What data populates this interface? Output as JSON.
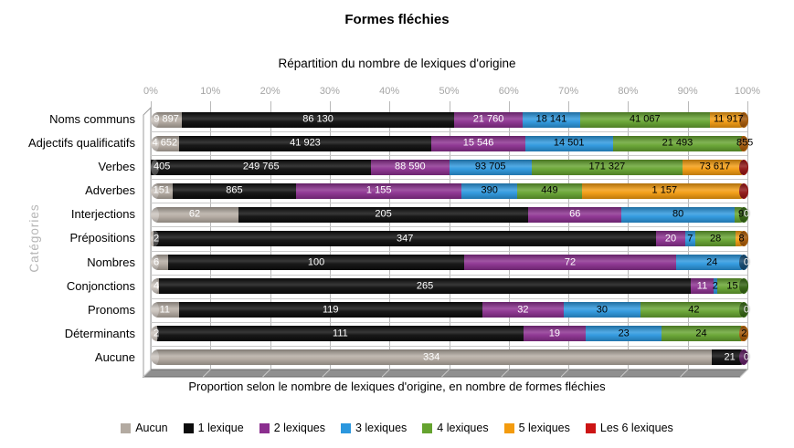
{
  "chart_data": {
    "type": "bar",
    "orientation": "horizontal",
    "stacked": "100%",
    "title": "Formes fléchies",
    "subtitle": "Répartition du nombre de lexiques d'origine",
    "caption": "Proportion selon le nombre de lexiques d'origine, en nombre de formes fléchies",
    "y_axis_title": "Catégories",
    "x_ticks": [
      "0%",
      "10%",
      "20%",
      "30%",
      "40%",
      "50%",
      "60%",
      "70%",
      "80%",
      "90%",
      "100%"
    ],
    "grid": "vertical-10pct",
    "legend_position": "bottom",
    "legend": [
      {
        "key": "aucun",
        "label": "Aucun"
      },
      {
        "key": "lex1",
        "label": "1 lexique"
      },
      {
        "key": "lex2",
        "label": "2 lexiques"
      },
      {
        "key": "lex3",
        "label": "3 lexiques"
      },
      {
        "key": "lex4",
        "label": "4 lexiques"
      },
      {
        "key": "lex5",
        "label": "5 lexiques"
      },
      {
        "key": "lex6",
        "label": "Les 6 lexiques"
      }
    ],
    "colors": {
      "aucun": "#b3aaa1",
      "lex1": "#0c0c0c",
      "lex2": "#8b2f8f",
      "lex3": "#2b97de",
      "lex4": "#65a32f",
      "lex5": "#f39b0e",
      "lex6": "#cc1414"
    },
    "cap_colors": {
      "aucun": "#857c74",
      "lex1": "#3a3a3a",
      "lex2": "#5a1b5e",
      "lex3": "#10466f",
      "lex4": "#30600f",
      "lex5": "#a05505",
      "lex6": "#8e1212"
    },
    "label_text_colors": {
      "aucun": "#ffffff",
      "lex1": "#ffffff",
      "lex2": "#ffffff",
      "lex3": "#000000",
      "lex4": "#000000",
      "lex5": "#000000",
      "lex6": "#ffffff"
    },
    "categories": [
      "Noms communs",
      "Adjectifs qualificatifs",
      "Verbes",
      "Adverbes",
      "Interjections",
      "Prépositions",
      "Nombres",
      "Conjonctions",
      "Pronoms",
      "Déterminants",
      "Aucune"
    ],
    "rows": [
      {
        "category": "Noms communs",
        "cap": "lex5",
        "end_label": "",
        "segments": [
          {
            "series": "aucun",
            "value": 9897,
            "label": "9 897"
          },
          {
            "series": "lex1",
            "value": 86130,
            "label": "86 130"
          },
          {
            "series": "lex2",
            "value": 21760,
            "label": "21 760"
          },
          {
            "series": "lex3",
            "value": 18141,
            "label": "18 141"
          },
          {
            "series": "lex4",
            "value": 41067,
            "label": "41 067"
          },
          {
            "series": "lex5",
            "value": 11917,
            "label": "11 917"
          }
        ]
      },
      {
        "category": "Adjectifs qualificatifs",
        "cap": "lex5",
        "end_label": "",
        "segments": [
          {
            "series": "aucun",
            "value": 4652,
            "label": "4 652"
          },
          {
            "series": "lex1",
            "value": 41923,
            "label": "41 923"
          },
          {
            "series": "lex2",
            "value": 15546,
            "label": "15 546"
          },
          {
            "series": "lex3",
            "value": 14501,
            "label": "14 501"
          },
          {
            "series": "lex4",
            "value": 21493,
            "label": "21 493"
          },
          {
            "series": "lex5",
            "value": 855,
            "label": "855"
          }
        ]
      },
      {
        "category": "Verbes",
        "cap": "lex6",
        "end_label": "",
        "segments": [
          {
            "series": "aucun",
            "value": 405,
            "label": "405"
          },
          {
            "series": "lex1",
            "value": 249765,
            "label": "249 765"
          },
          {
            "series": "lex2",
            "value": 88590,
            "label": "88 590"
          },
          {
            "series": "lex3",
            "value": 93705,
            "label": "93 705"
          },
          {
            "series": "lex4",
            "value": 171327,
            "label": "171 327"
          },
          {
            "series": "lex5",
            "value": 73617,
            "label": "73 617"
          }
        ]
      },
      {
        "category": "Adverbes",
        "cap": "lex6",
        "end_label": "",
        "segments": [
          {
            "series": "aucun",
            "value": 151,
            "label": "151"
          },
          {
            "series": "lex1",
            "value": 865,
            "label": "865"
          },
          {
            "series": "lex2",
            "value": 1155,
            "label": "1 155"
          },
          {
            "series": "lex3",
            "value": 390,
            "label": "390"
          },
          {
            "series": "lex4",
            "value": 449,
            "label": "449"
          },
          {
            "series": "lex5",
            "value": 1157,
            "label": "1 157"
          }
        ]
      },
      {
        "category": "Interjections",
        "cap": "lex4",
        "end_label": "0",
        "segments": [
          {
            "series": "aucun",
            "value": 62,
            "label": "62"
          },
          {
            "series": "lex1",
            "value": 205,
            "label": "205"
          },
          {
            "series": "lex2",
            "value": 66,
            "label": "66"
          },
          {
            "series": "lex3",
            "value": 80,
            "label": "80"
          },
          {
            "series": "lex4",
            "value": 9,
            "label": "9"
          }
        ]
      },
      {
        "category": "Prépositions",
        "cap": "lex5",
        "end_label": "",
        "segments": [
          {
            "series": "aucun",
            "value": 2,
            "label": "2"
          },
          {
            "series": "lex1",
            "value": 347,
            "label": "347"
          },
          {
            "series": "lex2",
            "value": 20,
            "label": "20"
          },
          {
            "series": "lex3",
            "value": 7,
            "label": "7"
          },
          {
            "series": "lex4",
            "value": 28,
            "label": "28"
          },
          {
            "series": "lex5",
            "value": 8,
            "label": "8"
          }
        ]
      },
      {
        "category": "Nombres",
        "cap": "lex3",
        "end_label": "0",
        "segments": [
          {
            "series": "aucun",
            "value": 6,
            "label": "6"
          },
          {
            "series": "lex1",
            "value": 100,
            "label": "100"
          },
          {
            "series": "lex2",
            "value": 72,
            "label": "72"
          },
          {
            "series": "lex3",
            "value": 24,
            "label": "24"
          }
        ]
      },
      {
        "category": "Conjonctions",
        "cap": "lex4",
        "end_label": "",
        "segments": [
          {
            "series": "aucun",
            "value": 4,
            "label": "4"
          },
          {
            "series": "lex1",
            "value": 265,
            "label": "265"
          },
          {
            "series": "lex2",
            "value": 11,
            "label": "11"
          },
          {
            "series": "lex3",
            "value": 2,
            "label": "2"
          },
          {
            "series": "lex4",
            "value": 15,
            "label": "15"
          }
        ]
      },
      {
        "category": "Pronoms",
        "cap": "lex4",
        "end_label": "0",
        "segments": [
          {
            "series": "aucun",
            "value": 11,
            "label": "11"
          },
          {
            "series": "lex1",
            "value": 119,
            "label": "119"
          },
          {
            "series": "lex2",
            "value": 32,
            "label": "32"
          },
          {
            "series": "lex3",
            "value": 30,
            "label": "30"
          },
          {
            "series": "lex4",
            "value": 42,
            "label": "42"
          }
        ]
      },
      {
        "category": "Déterminants",
        "cap": "lex5",
        "end_label": "",
        "segments": [
          {
            "series": "aucun",
            "value": 2,
            "label": "2"
          },
          {
            "series": "lex1",
            "value": 111,
            "label": "111"
          },
          {
            "series": "lex2",
            "value": 19,
            "label": "19"
          },
          {
            "series": "lex3",
            "value": 23,
            "label": "23"
          },
          {
            "series": "lex4",
            "value": 24,
            "label": "24"
          },
          {
            "series": "lex5",
            "value": 2,
            "label": "2"
          }
        ]
      },
      {
        "category": "Aucune",
        "cap": "lex2",
        "end_label": "0",
        "segments": [
          {
            "series": "aucun",
            "value": 334,
            "label": "334"
          },
          {
            "series": "lex1",
            "value": 21,
            "label": "21"
          }
        ]
      }
    ]
  }
}
